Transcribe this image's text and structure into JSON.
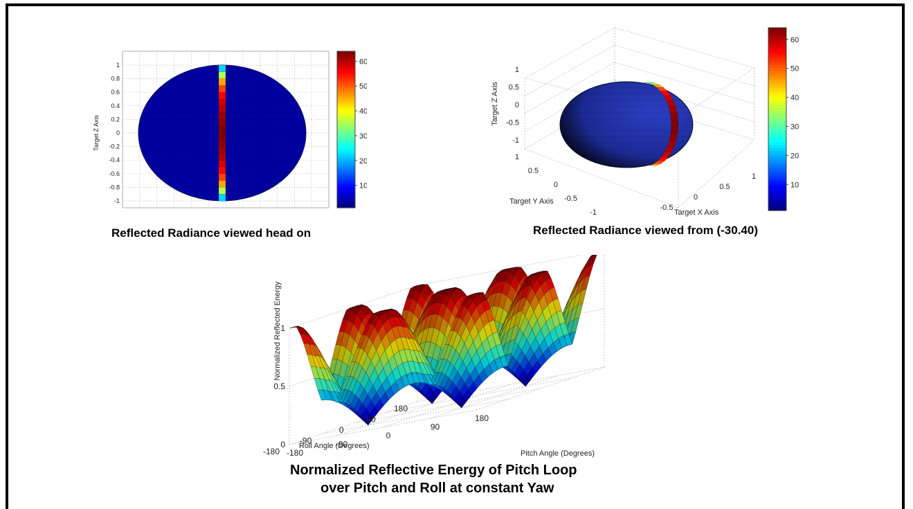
{
  "chart_data": [
    {
      "type": "heatmap",
      "subtype": "ellipsoid-2d-view",
      "title": "Reflected Radiance viewed head on",
      "ylabel": "Target Z Axis",
      "y_ticks": [
        "1",
        "0.8",
        "0.6",
        "0.4",
        "0.2",
        "0",
        "-0.2",
        "-0.4",
        "-0.6",
        "-0.8",
        "-1"
      ],
      "ylim": [
        -1,
        1
      ],
      "colorbar_ticks": [
        "60",
        "50",
        "40",
        "30",
        "20",
        "10"
      ],
      "colorbar_range": [
        1,
        64
      ],
      "colormap": "jet",
      "stripe": {
        "z": [
          0.95,
          0.85,
          0.75,
          0.65,
          0.55,
          0.45,
          0.35,
          0.25,
          0.15,
          0.05,
          -0.05,
          -0.15,
          -0.25,
          -0.35,
          -0.45,
          -0.55,
          -0.65,
          -0.75,
          -0.85,
          -0.95
        ],
        "values": [
          22,
          36,
          46,
          52,
          56,
          59,
          61,
          62,
          63,
          64,
          64,
          63,
          62,
          61,
          59,
          56,
          52,
          46,
          36,
          22
        ]
      },
      "background_value": 3,
      "grid": true
    },
    {
      "type": "heatmap",
      "subtype": "ellipsoid-3d-view",
      "title": "Reflected Radiance viewed from (-30.40)",
      "xlabel": "Target X Axis",
      "ylabel": "Target Y Axis",
      "zlabel": "Target Z Axis",
      "x_ticks": [
        "-0.5",
        "0",
        "0.5",
        "1"
      ],
      "y_ticks": [
        "1",
        "0.5",
        "0",
        "-0.5",
        "-1"
      ],
      "z_ticks": [
        "1",
        "0.5",
        "0",
        "-0.5",
        "-1"
      ],
      "colorbar_ticks": [
        "60",
        "50",
        "40",
        "30",
        "20",
        "10"
      ],
      "colorbar_range": [
        1,
        64
      ],
      "colormap": "jet",
      "stripe_values": [
        22,
        36,
        46,
        52,
        56,
        59,
        61,
        62,
        63,
        64,
        64,
        63,
        62,
        61,
        59,
        56,
        52,
        46
      ],
      "background_value": 3,
      "grid": true
    },
    {
      "type": "area",
      "subtype": "3d-surface",
      "title_lines": [
        "Normalized Reflective Energy of Pitch Loop",
        "over Pitch and Roll at constant Yaw"
      ],
      "xlabel": "Pitch Angle (Degrees)",
      "ylabel": "Roll Angle (Degrees)",
      "zlabel": "Normalized Reflected Energy",
      "x_ticks": [
        "-180",
        "-90",
        "0",
        "90",
        "180"
      ],
      "y_ticks": [
        "180",
        "90",
        "0",
        "-90",
        "-180"
      ],
      "z_ticks": [
        "1",
        "0.5",
        "0"
      ],
      "zlim": [
        0,
        1
      ],
      "colormap": "jet",
      "grid": true
    }
  ]
}
